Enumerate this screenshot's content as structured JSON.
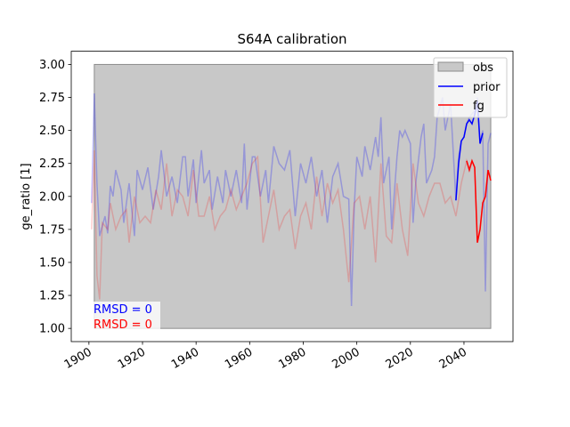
{
  "chart_data": {
    "type": "line",
    "title": "S64A calibration",
    "ylabel": "ge_ratio [1]",
    "xlim": [
      1893.4,
      2058.3
    ],
    "ylim": [
      0.9,
      3.1
    ],
    "xticks": [
      1900,
      1920,
      1940,
      1960,
      1980,
      2000,
      2020,
      2040
    ],
    "yticks": [
      {
        "value": 1,
        "label": "1.00"
      },
      {
        "value": 1.25,
        "label": "1.25"
      },
      {
        "value": 1.5,
        "label": "1.50"
      },
      {
        "value": 1.75,
        "label": "1.75"
      },
      {
        "value": 2,
        "label": "2.00"
      },
      {
        "value": 2.25,
        "label": "2.25"
      },
      {
        "value": 2.5,
        "label": "2.50"
      },
      {
        "value": 2.75,
        "label": "2.75"
      },
      {
        "value": 3,
        "label": "3.00"
      }
    ],
    "legend": "upper right",
    "obs": {
      "name": "obs",
      "color": "#c8c8c8",
      "edge": "#8c8c8c",
      "xrange": [
        1902,
        2050
      ],
      "yrange": [
        1,
        3
      ]
    },
    "series": [
      {
        "color": "#0000ff",
        "alpha": 0.25,
        "x": [
          1901,
          1902,
          1903,
          1904,
          1906,
          1907,
          1908,
          1909,
          1910,
          1912,
          1913,
          1915,
          1917,
          1918,
          1920,
          1922,
          1924,
          1926,
          1927,
          1929,
          1931,
          1933,
          1935,
          1936,
          1937,
          1939,
          1940,
          1942,
          1943,
          1945,
          1946,
          1948,
          1950,
          1951,
          1953,
          1955,
          1957,
          1958,
          1959,
          1961,
          1962,
          1964,
          1966,
          1967,
          1969,
          1971,
          1973,
          1975,
          1977,
          1979,
          1981,
          1983,
          1985,
          1987,
          1989,
          1991,
          1993,
          1995,
          1997,
          1998,
          1999,
          2000,
          2002,
          2003,
          2005,
          2007,
          2008,
          2009,
          2010,
          2012,
          2013,
          2015,
          2016,
          2017,
          2018,
          2020,
          2021,
          2022,
          2024,
          2025,
          2026,
          2028,
          2029,
          2030,
          2032,
          2033,
          2035,
          2037,
          2038,
          2039,
          2040,
          2041,
          2042,
          2044,
          2045,
          2046,
          2047,
          2048,
          2049,
          2050
        ],
        "values": [
          1.95,
          2.78,
          2.1,
          1.7,
          1.85,
          1.72,
          2.08,
          2.0,
          2.2,
          2.05,
          1.8,
          2.1,
          1.7,
          2.2,
          2.05,
          2.22,
          1.9,
          2.15,
          2.35,
          2.0,
          2.15,
          1.95,
          2.3,
          2.3,
          2.0,
          2.28,
          1.95,
          2.35,
          2.1,
          2.2,
          1.9,
          2.15,
          1.95,
          2.2,
          2.0,
          2.2,
          1.95,
          2.4,
          1.9,
          2.3,
          2.3,
          2.0,
          2.2,
          1.95,
          2.38,
          2.25,
          2.2,
          2.35,
          1.85,
          2.25,
          2.1,
          2.3,
          2.0,
          2.2,
          1.8,
          2.15,
          2.25,
          2.0,
          1.98,
          1.17,
          1.9,
          2.3,
          2.15,
          2.38,
          2.2,
          2.45,
          2.3,
          2.6,
          2.1,
          2.3,
          1.75,
          2.3,
          2.5,
          2.45,
          2.5,
          2.4,
          1.8,
          2.1,
          2.45,
          2.55,
          2.1,
          2.2,
          2.3,
          2.6,
          2.75,
          2.5,
          2.7,
          1.97,
          2.3,
          2.42,
          2.45,
          2.55,
          2.6,
          2.65,
          2.75,
          2.4,
          2.5,
          1.28,
          2.4,
          2.48
        ]
      },
      {
        "color": "#ff0000",
        "alpha": 0.2,
        "x": [
          1901,
          1902,
          1903,
          1904,
          1905,
          1907,
          1908,
          1910,
          1912,
          1914,
          1915,
          1917,
          1919,
          1921,
          1923,
          1925,
          1927,
          1929,
          1931,
          1933,
          1935,
          1937,
          1939,
          1941,
          1943,
          1945,
          1947,
          1949,
          1951,
          1953,
          1955,
          1957,
          1959,
          1961,
          1963,
          1965,
          1967,
          1969,
          1971,
          1973,
          1975,
          1977,
          1979,
          1981,
          1983,
          1985,
          1987,
          1989,
          1991,
          1993,
          1995,
          1997,
          1999,
          2001,
          2003,
          2005,
          2007,
          2009,
          2011,
          2013,
          2015,
          2017,
          2019,
          2021,
          2023,
          2025,
          2027,
          2029,
          2031,
          2033,
          2035,
          2037,
          2039,
          2041,
          2042,
          2043,
          2044,
          2045,
          2046,
          2047,
          2048,
          2049,
          2050
        ],
        "values": [
          1.75,
          2.35,
          1.4,
          1.22,
          1.8,
          1.75,
          1.95,
          1.75,
          1.85,
          1.9,
          1.65,
          2.0,
          1.8,
          1.85,
          1.8,
          2.05,
          1.9,
          2.25,
          1.85,
          2.05,
          2.0,
          1.85,
          2.2,
          1.85,
          1.85,
          2.0,
          1.75,
          1.85,
          1.9,
          2.05,
          1.9,
          2.0,
          2.1,
          2.25,
          2.3,
          1.65,
          1.85,
          2.05,
          1.75,
          1.85,
          1.9,
          1.6,
          1.85,
          1.95,
          1.75,
          2.15,
          1.85,
          2.1,
          1.95,
          2.05,
          1.75,
          1.35,
          1.95,
          2.0,
          1.75,
          2.0,
          1.5,
          2.25,
          1.7,
          1.65,
          2.1,
          1.75,
          1.55,
          2.25,
          1.95,
          1.85,
          2.0,
          2.1,
          2.1,
          1.95,
          2.0,
          1.85,
          2.1,
          2.27,
          2.2,
          2.27,
          2.22,
          1.65,
          1.75,
          1.95,
          2.0,
          2.2,
          2.12
        ]
      },
      {
        "name": "prior",
        "color": "#0000ff",
        "alpha": 1,
        "x": [
          2037,
          2038,
          2039,
          2040,
          2041,
          2042,
          2043,
          2044,
          2045,
          2046,
          2047
        ],
        "values": [
          1.97,
          2.25,
          2.42,
          2.45,
          2.55,
          2.58,
          2.55,
          2.62,
          2.72,
          2.4,
          2.48
        ]
      },
      {
        "name": "fg",
        "color": "#ff0000",
        "alpha": 1,
        "x": [
          2041,
          2042,
          2043,
          2044,
          2045,
          2046,
          2047,
          2048,
          2049,
          2050
        ],
        "values": [
          2.27,
          2.2,
          2.27,
          2.22,
          1.65,
          1.75,
          1.95,
          2.0,
          2.2,
          2.12
        ]
      }
    ],
    "annotations": [
      {
        "text": "RMSD = 0",
        "color": "#0000ff"
      },
      {
        "text": "RMSD = 0",
        "color": "#ff0000"
      }
    ]
  }
}
